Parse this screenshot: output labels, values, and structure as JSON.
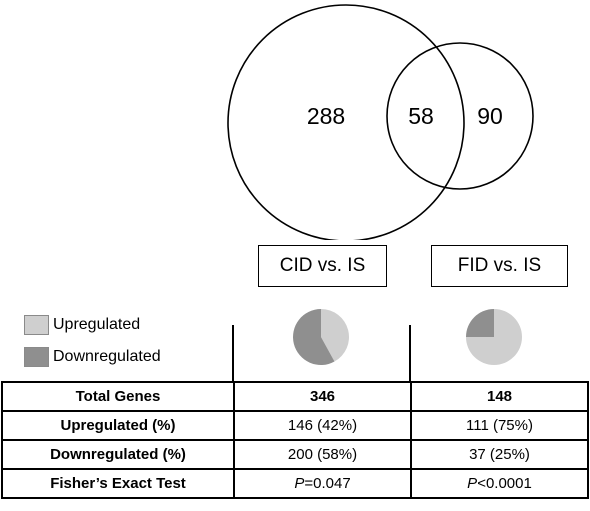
{
  "venn": {
    "a_only": "288",
    "overlap": "58",
    "b_only": "90",
    "set_a_label": "CID vs. IS",
    "set_b_label": "FID vs. IS"
  },
  "legend": {
    "up_label": "Upregulated",
    "down_label": "Downregulated"
  },
  "colors": {
    "upregulated": "#cfcfcf",
    "downregulated": "#8f8f8f"
  },
  "pies": [
    {
      "condition": "CID vs. IS",
      "up_pct": 42,
      "down_pct": 58
    },
    {
      "condition": "FID vs. IS",
      "up_pct": 75,
      "down_pct": 25
    }
  ],
  "table": {
    "rows": [
      {
        "label": "Total Genes",
        "cid": "346",
        "fid": "148",
        "bold": true
      },
      {
        "label": "Upregulated (%)",
        "cid": "146 (42%)",
        "fid": "111 (75%)",
        "bold": false
      },
      {
        "label": "Downregulated (%)",
        "cid": "200 (58%)",
        "fid": "37 (25%)",
        "bold": false
      }
    ],
    "fisher": {
      "label": "Fisher’s Exact Test",
      "cid_symbol": "P",
      "cid_value": "=0.047",
      "fid_symbol": "P",
      "fid_value": "<0.0001"
    }
  }
}
